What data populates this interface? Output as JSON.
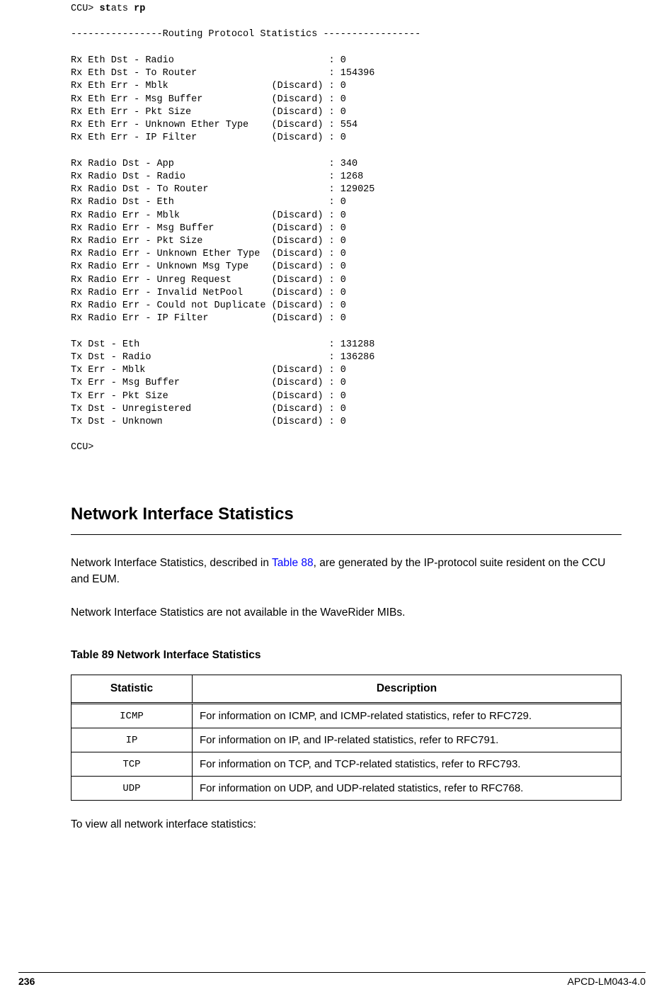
{
  "code_output": {
    "prompt": "CCU>",
    "command_part1": "st",
    "command_part2": "ats ",
    "command_part3": "rp",
    "header_line": "----------------Routing Protocol Statistics -----------------",
    "lines": [
      {
        "label": "Rx Eth Dst - Radio",
        "tag": "",
        "value": "0"
      },
      {
        "label": "Rx Eth Dst - To Router",
        "tag": "",
        "value": "154396"
      },
      {
        "label": "Rx Eth Err - Mblk",
        "tag": "(Discard)",
        "value": "0"
      },
      {
        "label": "Rx Eth Err - Msg Buffer",
        "tag": "(Discard)",
        "value": "0"
      },
      {
        "label": "Rx Eth Err - Pkt Size",
        "tag": "(Discard)",
        "value": "0"
      },
      {
        "label": "Rx Eth Err - Unknown Ether Type",
        "tag": "(Discard)",
        "value": "554"
      },
      {
        "label": "Rx Eth Err - IP Filter",
        "tag": "(Discard)",
        "value": "0"
      }
    ],
    "lines2": [
      {
        "label": "Rx Radio Dst - App",
        "tag": "",
        "value": "340"
      },
      {
        "label": "Rx Radio Dst - Radio",
        "tag": "",
        "value": "1268"
      },
      {
        "label": "Rx Radio Dst - To Router",
        "tag": "",
        "value": "129025"
      },
      {
        "label": "Rx Radio Dst - Eth",
        "tag": "",
        "value": "0"
      },
      {
        "label": "Rx Radio Err - Mblk",
        "tag": "(Discard)",
        "value": "0"
      },
      {
        "label": "Rx Radio Err - Msg Buffer",
        "tag": "(Discard)",
        "value": "0"
      },
      {
        "label": "Rx Radio Err - Pkt Size",
        "tag": "(Discard)",
        "value": "0"
      },
      {
        "label": "Rx Radio Err - Unknown Ether Type",
        "tag": "(Discard)",
        "value": "0"
      },
      {
        "label": "Rx Radio Err - Unknown Msg Type",
        "tag": "(Discard)",
        "value": "0"
      },
      {
        "label": "Rx Radio Err - Unreg Request",
        "tag": "(Discard)",
        "value": "0"
      },
      {
        "label": "Rx Radio Err - Invalid NetPool",
        "tag": "(Discard)",
        "value": "0"
      },
      {
        "label": "Rx Radio Err - Could not Duplicate",
        "tag": "(Discard)",
        "value": "0"
      },
      {
        "label": "Rx Radio Err - IP Filter",
        "tag": "(Discard)",
        "value": "0"
      }
    ],
    "lines3": [
      {
        "label": "Tx Dst - Eth",
        "tag": "",
        "value": "131288"
      },
      {
        "label": "Tx Dst - Radio",
        "tag": "",
        "value": "136286"
      },
      {
        "label": "Tx Err - Mblk",
        "tag": "(Discard)",
        "value": "0"
      },
      {
        "label": "Tx Err - Msg Buffer",
        "tag": "(Discard)",
        "value": "0"
      },
      {
        "label": "Tx Err - Pkt Size",
        "tag": "(Discard)",
        "value": "0"
      },
      {
        "label": "Tx Dst - Unregistered",
        "tag": "(Discard)",
        "value": "0"
      },
      {
        "label": "Tx Dst - Unknown",
        "tag": "(Discard)",
        "value": "0"
      }
    ],
    "end_prompt": "CCU>"
  },
  "section": {
    "title": "Network Interface Statistics",
    "para1_before": "Network Interface Statistics, described in ",
    "para1_link": "Table 88",
    "para1_after": ", are generated by the IP-protocol suite resident on the CCU and EUM.",
    "para2": "Network Interface Statistics are not available in the WaveRider MIBs.",
    "table_caption": "Table 89    Network Interface Statistics",
    "table_headers": [
      "Statistic",
      "Description"
    ],
    "table_rows": [
      {
        "stat": "ICMP",
        "desc": "For information on ICMP, and ICMP-related statistics, refer to RFC729."
      },
      {
        "stat": "IP",
        "desc": "For information on IP, and IP-related statistics, refer to RFC791."
      },
      {
        "stat": "TCP",
        "desc": "For information on TCP, and TCP-related statistics, refer to RFC793."
      },
      {
        "stat": "UDP",
        "desc": "For information on UDP, and UDP-related statistics, refer to RFC768."
      }
    ],
    "para3": "To view all network interface statistics:"
  },
  "footer": {
    "page": "236",
    "doc_id": "APCD-LM043-4.0"
  }
}
